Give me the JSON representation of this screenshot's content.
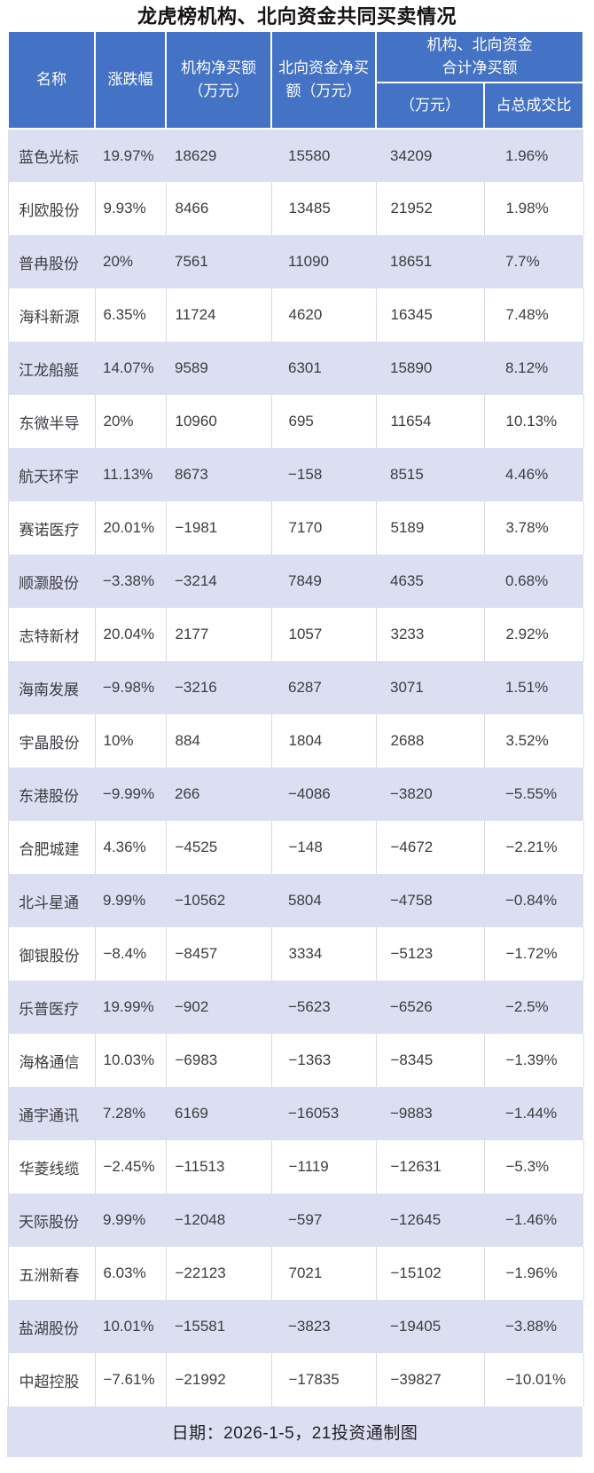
{
  "title": "龙虎榜机构、北向资金共同买卖情况",
  "header": {
    "name": "名称",
    "change": "涨跌幅",
    "inst_line1": "机构净买额",
    "inst_line2": "（万元）",
    "north_line1": "北向资金净买",
    "north_line2": "额（万元）",
    "combined_line1": "机构、北向资金",
    "combined_line2": "合计净买额",
    "combined_amount": "（万元）",
    "combined_ratio": "占总成交比"
  },
  "footer": "日期：2026-1-5，21投资通制图",
  "colors": {
    "header_bg": "#4472c4",
    "header_text": "#ffffff",
    "alt_row_bg": "#dbdff1",
    "row_border": "#d9d9e2",
    "body_text": "#3c3c42"
  },
  "chart_data": {
    "type": "table",
    "title": "龙虎榜机构、北向资金共同买卖情况",
    "columns": [
      "名称",
      "涨跌幅",
      "机构净买额（万元）",
      "北向资金净买额（万元）",
      "机构、北向资金合计净买额（万元）",
      "机构、北向资金合计净买额占总成交比"
    ],
    "rows": [
      [
        "蓝色光标",
        "19.97%",
        18629,
        15580,
        34209,
        "1.96%"
      ],
      [
        "利欧股份",
        "9.93%",
        8466,
        13485,
        21952,
        "1.98%"
      ],
      [
        "普冉股份",
        "20%",
        7561,
        11090,
        18651,
        "7.7%"
      ],
      [
        "海科新源",
        "6.35%",
        11724,
        4620,
        16345,
        "7.48%"
      ],
      [
        "江龙船艇",
        "14.07%",
        9589,
        6301,
        15890,
        "8.12%"
      ],
      [
        "东微半导",
        "20%",
        10960,
        695,
        11654,
        "10.13%"
      ],
      [
        "航天环宇",
        "11.13%",
        8673,
        -158,
        8515,
        "4.46%"
      ],
      [
        "赛诺医疗",
        "20.01%",
        -1981,
        7170,
        5189,
        "3.78%"
      ],
      [
        "顺灏股份",
        "-3.38%",
        -3214,
        7849,
        4635,
        "0.68%"
      ],
      [
        "志特新材",
        "20.04%",
        2177,
        1057,
        3233,
        "2.92%"
      ],
      [
        "海南发展",
        "-9.98%",
        -3216,
        6287,
        3071,
        "1.51%"
      ],
      [
        "宇晶股份",
        "10%",
        884,
        1804,
        2688,
        "3.52%"
      ],
      [
        "东港股份",
        "-9.99%",
        266,
        -4086,
        -3820,
        "-5.55%"
      ],
      [
        "合肥城建",
        "4.36%",
        -4525,
        -148,
        -4672,
        "-2.21%"
      ],
      [
        "北斗星通",
        "9.99%",
        -10562,
        5804,
        -4758,
        "-0.84%"
      ],
      [
        "御银股份",
        "-8.4%",
        -8457,
        3334,
        -5123,
        "-1.72%"
      ],
      [
        "乐普医疗",
        "19.99%",
        -902,
        -5623,
        -6526,
        "-2.5%"
      ],
      [
        "海格通信",
        "10.03%",
        -6983,
        -1363,
        -8345,
        "-1.39%"
      ],
      [
        "通宇通讯",
        "7.28%",
        6169,
        -16053,
        -9883,
        "-1.44%"
      ],
      [
        "华菱线缆",
        "-2.45%",
        -11513,
        -1119,
        -12631,
        "-5.3%"
      ],
      [
        "天际股份",
        "9.99%",
        -12048,
        -597,
        -12645,
        "-1.46%"
      ],
      [
        "五洲新春",
        "6.03%",
        -22123,
        7021,
        -15102,
        "-1.96%"
      ],
      [
        "盐湖股份",
        "10.01%",
        -15581,
        -3823,
        -19405,
        "-3.88%"
      ],
      [
        "中超控股",
        "-7.61%",
        -21992,
        -17835,
        -39827,
        "-10.01%"
      ]
    ],
    "note": "日期：2026-1-5，21投资通制图",
    "layout_hints": {
      "alternating_row_shading": true,
      "header_merged_group_cols": [
        4,
        5
      ],
      "grid": "light vertical rules on white rows only"
    }
  }
}
